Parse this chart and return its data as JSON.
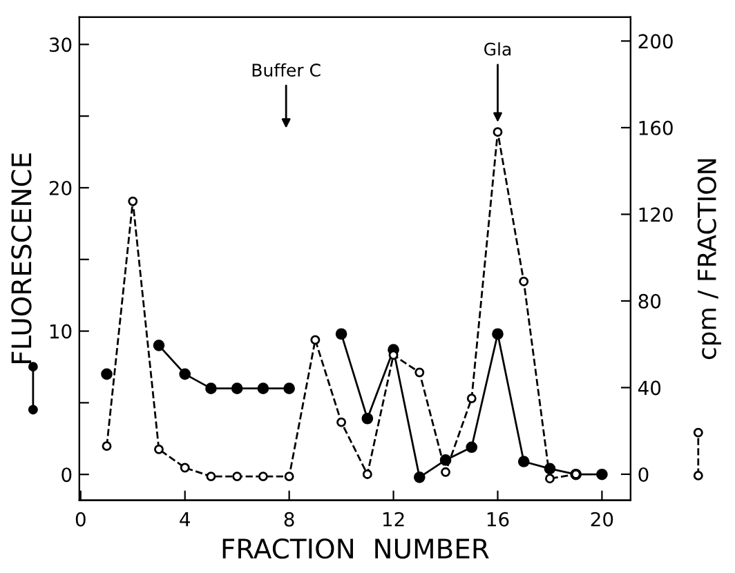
{
  "chart_data": {
    "type": "line",
    "xlabel": "FRACTION  NUMBER",
    "ylabel": "FLUORESCENCE",
    "y2label": "cpm / FRACTION",
    "x": [
      1,
      2,
      3,
      4,
      5,
      6,
      7,
      8,
      9,
      10,
      11,
      12,
      13,
      14,
      15,
      16,
      17,
      18,
      19,
      20
    ],
    "series": [
      {
        "color": "#000000",
        "marker": "circle",
        "line_style": "solid",
        "values": [
          7,
          null,
          9,
          7,
          6,
          6,
          6,
          6,
          null,
          9.8,
          3.9,
          8.7,
          -0.2,
          1.0,
          1.9,
          9.8,
          0.9,
          0.4,
          0,
          0
        ]
      },
      {
        "color": "#000000",
        "marker": "circle",
        "line_style": "dashed",
        "axis": "y2",
        "values": [
          13,
          126,
          11.5,
          3,
          -1,
          -1,
          -1,
          -1,
          62,
          24,
          0,
          55,
          47,
          1,
          35,
          158,
          89,
          -2,
          0,
          null
        ]
      }
    ],
    "xlim": [
      -0.05,
      21.1
    ],
    "xticks": [
      0,
      4,
      8,
      12,
      16,
      20
    ],
    "ylim": [
      -1.8,
      31.9
    ],
    "yticks": [
      0,
      {
        "value": 5,
        "label": null
      },
      10,
      {
        "value": 15,
        "label": null
      },
      20,
      {
        "value": 25,
        "label": null
      },
      30
    ],
    "y2lim": [
      -12,
      211
    ],
    "y2ticks": [
      0,
      40,
      80,
      120,
      160,
      200
    ],
    "annotations": [
      "Buffer C",
      {
        "text": "Gla",
        "x": 16,
        "y": 23.9
      }
    ],
    "grid": false,
    "legend": false
  }
}
